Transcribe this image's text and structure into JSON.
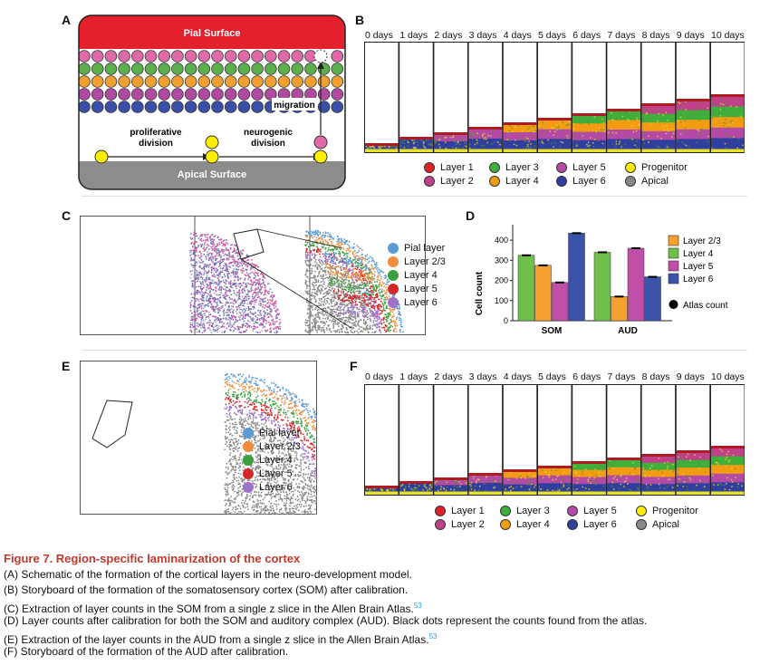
{
  "panels": {
    "a": {
      "label": "A",
      "pial": "Pial Surface",
      "apical": "Apical Surface",
      "prolif": [
        "proliferative",
        "division"
      ],
      "neuro": [
        "neurogenic",
        "division"
      ],
      "migration": "migration"
    },
    "b": {
      "label": "B"
    },
    "c": {
      "label": "C"
    },
    "d": {
      "label": "D"
    },
    "e": {
      "label": "E"
    },
    "f": {
      "label": "F"
    }
  },
  "days": [
    "0 days",
    "1 days",
    "2 days",
    "3 days",
    "4 days",
    "5 days",
    "6 days",
    "7 days",
    "8 days",
    "9 days",
    "10 days"
  ],
  "storyboard_legend": [
    {
      "label": "Layer 1",
      "color": "#e0202a"
    },
    {
      "label": "Layer 3",
      "color": "#3fae3a"
    },
    {
      "label": "Layer 5",
      "color": "#b54aa6"
    },
    {
      "label": "Progenitor",
      "color": "#ffee00"
    },
    {
      "label": "Layer 2",
      "color": "#c0408a"
    },
    {
      "label": "Layer 4",
      "color": "#f39c12"
    },
    {
      "label": "Layer 6",
      "color": "#2e3f9e"
    },
    {
      "label": "Apical",
      "color": "#888888"
    }
  ],
  "slice_legend": [
    {
      "label": "Pial layer",
      "color": "#5b9bd5"
    },
    {
      "label": "Layer 2/3",
      "color": "#f08c3c"
    },
    {
      "label": "Layer 4",
      "color": "#3ca040"
    },
    {
      "label": "Layer 5",
      "color": "#d62728"
    },
    {
      "label": "Layer 6",
      "color": "#9e72c8"
    }
  ],
  "chart_data": {
    "type": "bar",
    "categories": [
      "SOM",
      "AUD"
    ],
    "series": [
      {
        "name": "Layer 2/3",
        "color": "#f5a030",
        "values": [
          275,
          120
        ]
      },
      {
        "name": "Layer 4",
        "color": "#6ec04a",
        "values": [
          325,
          340
        ]
      },
      {
        "name": "Layer 5",
        "color": "#c04fa8",
        "values": [
          190,
          360
        ]
      },
      {
        "name": "Layer 6",
        "color": "#3a52a8",
        "values": [
          435,
          218
        ]
      }
    ],
    "atlas_label": "Atlas count",
    "ylabel": "Cell count",
    "ylim": [
      0,
      450
    ],
    "yticks": [
      0,
      100,
      200,
      300,
      400
    ],
    "legend_position": "right"
  },
  "caption": {
    "title": "Figure 7. Region-specific laminarization of the cortex",
    "lines": [
      "(A) Schematic of the formation of the cortical layers in the neuro-development model.",
      "(B) Storyboard of the formation of the somatosensory cortex (SOM) after calibration.",
      "(C) Extraction of layer counts in the SOM from a single z slice in the Allen Brain Atlas.",
      "(D) Layer counts after calibration for both the SOM and auditory complex (AUD). Black dots represent the counts found from the atlas.",
      "(E) Extraction of the layer counts in the AUD from a single z slice in the Allen Brain Atlas.",
      "(F) Storyboard of the formation of the AUD after calibration."
    ],
    "ref": "53"
  }
}
